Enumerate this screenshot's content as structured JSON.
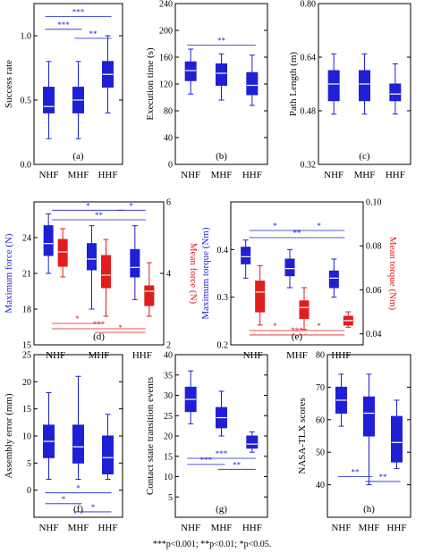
{
  "colors": {
    "blue": "#1f1fd6",
    "red": "#e11d1d",
    "axis": "#000000"
  },
  "categories": [
    "NHF",
    "MHF",
    "HHF"
  ],
  "footnote": "***p<0.001; **p<0.01; *p<0.05.",
  "chart_data": [
    {
      "type": "box",
      "panel_label": "(a)",
      "ylabel": "Success rate",
      "ylim": [
        0.0,
        1.25
      ],
      "yticks": [
        0.0,
        0.5,
        1.0
      ],
      "ytick_labels": [
        "0.0",
        "0.5",
        "1.0"
      ],
      "categories": [
        "NHF",
        "MHF",
        "HHF"
      ],
      "series": [
        {
          "color": "blue",
          "boxes": [
            {
              "min": 0.2,
              "q1": 0.4,
              "median": 0.45,
              "q3": 0.6,
              "max": 0.8
            },
            {
              "min": 0.2,
              "q1": 0.4,
              "median": 0.5,
              "q3": 0.6,
              "max": 0.8
            },
            {
              "min": 0.4,
              "q1": 0.6,
              "median": 0.7,
              "q3": 0.8,
              "max": 1.0
            }
          ]
        }
      ],
      "significance": [
        {
          "from": 0,
          "to": 2,
          "y": 1.15,
          "text": "***",
          "color": "blue"
        },
        {
          "from": 0,
          "to": 1,
          "y": 1.05,
          "text": "***",
          "color": "blue"
        },
        {
          "from": 1,
          "to": 2,
          "y": 0.98,
          "text": "**",
          "color": "blue"
        }
      ]
    },
    {
      "type": "box",
      "panel_label": "(b)",
      "ylabel": "Execution time (s)",
      "ylim": [
        0,
        240
      ],
      "yticks": [
        0,
        40,
        80,
        120,
        160,
        200,
        240
      ],
      "ytick_labels": [
        "0",
        "40",
        "80",
        "120",
        "160",
        "200",
        "240"
      ],
      "categories": [
        "NHF",
        "MHF",
        "HHF"
      ],
      "series": [
        {
          "color": "blue",
          "boxes": [
            {
              "min": 105,
              "q1": 125,
              "median": 140,
              "q3": 153,
              "max": 172
            },
            {
              "min": 96,
              "q1": 118,
              "median": 136,
              "q3": 150,
              "max": 165
            },
            {
              "min": 88,
              "q1": 104,
              "median": 118,
              "q3": 137,
              "max": 163
            }
          ]
        }
      ],
      "significance": [
        {
          "from": 0,
          "to": 2,
          "y": 178,
          "text": "**",
          "color": "blue"
        }
      ]
    },
    {
      "type": "box",
      "panel_label": "(c)",
      "ylabel": "Path Length (m)",
      "ylim": [
        0.32,
        0.8
      ],
      "yticks": [
        0.32,
        0.48,
        0.64,
        0.8
      ],
      "ytick_labels": [
        "0.32",
        "0.48",
        "0.64",
        "0.80"
      ],
      "categories": [
        "NHF",
        "MHF",
        "HHF"
      ],
      "series": [
        {
          "color": "blue",
          "boxes": [
            {
              "min": 0.47,
              "q1": 0.51,
              "median": 0.56,
              "q3": 0.6,
              "max": 0.65
            },
            {
              "min": 0.47,
              "q1": 0.51,
              "median": 0.56,
              "q3": 0.6,
              "max": 0.65
            },
            {
              "min": 0.47,
              "q1": 0.51,
              "median": 0.53,
              "q3": 0.56,
              "max": 0.62
            }
          ]
        }
      ],
      "significance": []
    },
    {
      "type": "box",
      "panel_label": "(d)",
      "ylabel": "Maximum force (N)",
      "ylabel_right": "Mean force (N)",
      "ylim": [
        15,
        27
      ],
      "yticks": [
        15,
        18,
        21,
        24
      ],
      "ytick_labels": [
        "15",
        "18",
        "21",
        "24"
      ],
      "ylim_right": [
        2,
        6
      ],
      "yticks_right": [
        2,
        4,
        6
      ],
      "ytick_labels_right": [
        "2",
        "4",
        "6"
      ],
      "categories": [
        "NHF",
        "MHF",
        "HHF"
      ],
      "series": [
        {
          "color": "blue",
          "axis": "left",
          "boxes": [
            {
              "min": 21,
              "q1": 22.5,
              "median": 23.5,
              "q3": 25,
              "max": 26
            },
            {
              "min": 18,
              "q1": 21.3,
              "median": 22.2,
              "q3": 23.5,
              "max": 25
            },
            {
              "min": 18.8,
              "q1": 20.7,
              "median": 21.5,
              "q3": 23,
              "max": 25
            }
          ]
        },
        {
          "color": "red",
          "axis": "right",
          "boxes": [
            {
              "min": 3.9,
              "q1": 4.2,
              "median": 4.6,
              "q3": 4.95,
              "max": 5.25
            },
            {
              "min": 2.8,
              "q1": 3.6,
              "median": 3.95,
              "q3": 4.5,
              "max": 4.95
            },
            {
              "min": 2.8,
              "q1": 3.1,
              "median": 3.5,
              "q3": 3.65,
              "max": 4.3
            }
          ]
        }
      ],
      "significance": [
        {
          "from": 0,
          "to": 1.5,
          "y": 26.3,
          "text": "*",
          "color": "blue",
          "axis": "left"
        },
        {
          "from": 1.5,
          "to": 2,
          "y": 26.3,
          "text": "*",
          "color": "blue",
          "axis": "left"
        },
        {
          "from": 0,
          "to": 2,
          "y": 25.5,
          "text": "**",
          "color": "blue",
          "axis": "left"
        },
        {
          "from": 0,
          "to": 1,
          "y": 2.6,
          "text": "*",
          "color": "red",
          "axis": "right"
        },
        {
          "from": 0,
          "to": 2,
          "y": 2.45,
          "text": "***",
          "color": "red",
          "axis": "right"
        },
        {
          "from": 1,
          "to": 2,
          "y": 2.35,
          "text": "*",
          "color": "red",
          "axis": "right"
        }
      ]
    },
    {
      "type": "box",
      "panel_label": "(e)",
      "ylabel": "Maximum torque (Nm)",
      "ylabel_right": "Mean torque (Nm)",
      "ylim": [
        0.2,
        0.5
      ],
      "yticks": [
        0.2,
        0.3,
        0.4
      ],
      "ytick_labels": [
        "0.2",
        "0.3",
        "0.4"
      ],
      "ylim_right": [
        0.035,
        0.1
      ],
      "yticks_right": [
        0.04,
        0.06,
        0.08,
        0.1
      ],
      "ytick_labels_right": [
        "0.04",
        "0.06",
        "0.08",
        "0.10"
      ],
      "categories": [
        "NHF",
        "MHF",
        "HHF"
      ],
      "series": [
        {
          "color": "blue",
          "axis": "left",
          "boxes": [
            {
              "min": 0.34,
              "q1": 0.37,
              "median": 0.385,
              "q3": 0.405,
              "max": 0.42
            },
            {
              "min": 0.32,
              "q1": 0.345,
              "median": 0.36,
              "q3": 0.38,
              "max": 0.4
            },
            {
              "min": 0.3,
              "q1": 0.32,
              "median": 0.34,
              "q3": 0.355,
              "max": 0.38
            }
          ]
        },
        {
          "color": "red",
          "axis": "right",
          "boxes": [
            {
              "min": 0.044,
              "q1": 0.05,
              "median": 0.059,
              "q3": 0.064,
              "max": 0.071
            },
            {
              "min": 0.042,
              "q1": 0.047,
              "median": 0.052,
              "q3": 0.055,
              "max": 0.061
            },
            {
              "min": 0.043,
              "q1": 0.044,
              "median": 0.046,
              "q3": 0.048,
              "max": 0.05
            }
          ]
        }
      ],
      "significance": [
        {
          "from": 0,
          "to": 1,
          "y": 0.44,
          "text": "*",
          "color": "blue",
          "axis": "left"
        },
        {
          "from": 1,
          "to": 2,
          "y": 0.44,
          "text": "*",
          "color": "blue",
          "axis": "left"
        },
        {
          "from": 0,
          "to": 2,
          "y": 0.425,
          "text": "**",
          "color": "blue",
          "axis": "left"
        },
        {
          "from": 0,
          "to": 1,
          "y": 0.0415,
          "text": "*",
          "color": "red",
          "axis": "right"
        },
        {
          "from": 1,
          "to": 2,
          "y": 0.0415,
          "text": "*",
          "color": "red",
          "axis": "right"
        },
        {
          "from": 0,
          "to": 2,
          "y": 0.0395,
          "text": "***",
          "color": "red",
          "axis": "right"
        }
      ]
    },
    {
      "type": "box",
      "panel_label": "(f)",
      "ylabel": "Assembly error (mm)",
      "ylim": [
        -5,
        25
      ],
      "yticks": [
        0,
        5,
        10,
        15,
        20,
        25
      ],
      "ytick_labels": [
        "0",
        "5",
        "10",
        "15",
        "20",
        "25"
      ],
      "categories": [
        "NHF",
        "MHF",
        "HHF"
      ],
      "series": [
        {
          "color": "blue",
          "boxes": [
            {
              "min": 2,
              "q1": 6,
              "median": 9,
              "q3": 12,
              "max": 18
            },
            {
              "min": 2,
              "q1": 5,
              "median": 8,
              "q3": 12,
              "max": 21
            },
            {
              "min": 2,
              "q1": 3,
              "median": 6,
              "q3": 10,
              "max": 14
            }
          ]
        }
      ],
      "significance": [
        {
          "from": 0,
          "to": 2,
          "y": -0.5,
          "text": "*",
          "color": "blue"
        },
        {
          "from": 0,
          "to": 1,
          "y": -2.5,
          "text": "*",
          "color": "blue"
        },
        {
          "from": 1,
          "to": 2,
          "y": -4,
          "text": "*",
          "color": "blue"
        }
      ]
    },
    {
      "type": "box",
      "panel_label": "(g)",
      "ylabel": "Contact state transition events",
      "ylim": [
        0,
        40
      ],
      "yticks": [
        5,
        10,
        15,
        20,
        25,
        30,
        35,
        40
      ],
      "ytick_labels": [
        "5",
        "10",
        "15",
        "20",
        "25",
        "30",
        "35",
        "40"
      ],
      "categories": [
        "NHF",
        "MHF",
        "HHF"
      ],
      "series": [
        {
          "color": "blue",
          "boxes": [
            {
              "min": 23,
              "q1": 26,
              "median": 29,
              "q3": 32,
              "max": 36
            },
            {
              "min": 20,
              "q1": 22,
              "median": 24.5,
              "q3": 27,
              "max": 31
            },
            {
              "min": 16,
              "q1": 17,
              "median": 18,
              "q3": 20,
              "max": 21
            }
          ]
        }
      ],
      "significance": [
        {
          "from": 0,
          "to": 2,
          "y": 14.5,
          "text": "***",
          "color": "blue"
        },
        {
          "from": 0,
          "to": 1,
          "y": 13,
          "text": "***",
          "color": "blue"
        },
        {
          "from": 1,
          "to": 2,
          "y": 11.8,
          "text": "**",
          "color": "blue"
        }
      ]
    },
    {
      "type": "box",
      "panel_label": "(h)",
      "ylabel": "NASA-TLX scores",
      "ylim": [
        30,
        80
      ],
      "yticks": [
        40,
        50,
        60,
        70,
        80
      ],
      "ytick_labels": [
        "40",
        "50",
        "60",
        "70",
        "80"
      ],
      "categories": [
        "NHF",
        "MHF",
        "HHF"
      ],
      "series": [
        {
          "color": "blue",
          "boxes": [
            {
              "min": 58,
              "q1": 62,
              "median": 66,
              "q3": 70,
              "max": 74
            },
            {
              "min": 40,
              "q1": 55,
              "median": 62,
              "q3": 67,
              "max": 74
            },
            {
              "min": 45,
              "q1": 47,
              "median": 53,
              "q3": 61,
              "max": 66
            }
          ]
        }
      ],
      "significance": [
        {
          "from": 0,
          "to": 1,
          "y": 42.5,
          "text": "**",
          "color": "blue"
        },
        {
          "from": 1,
          "to": 2,
          "y": 41,
          "text": "**",
          "color": "blue"
        }
      ]
    }
  ]
}
